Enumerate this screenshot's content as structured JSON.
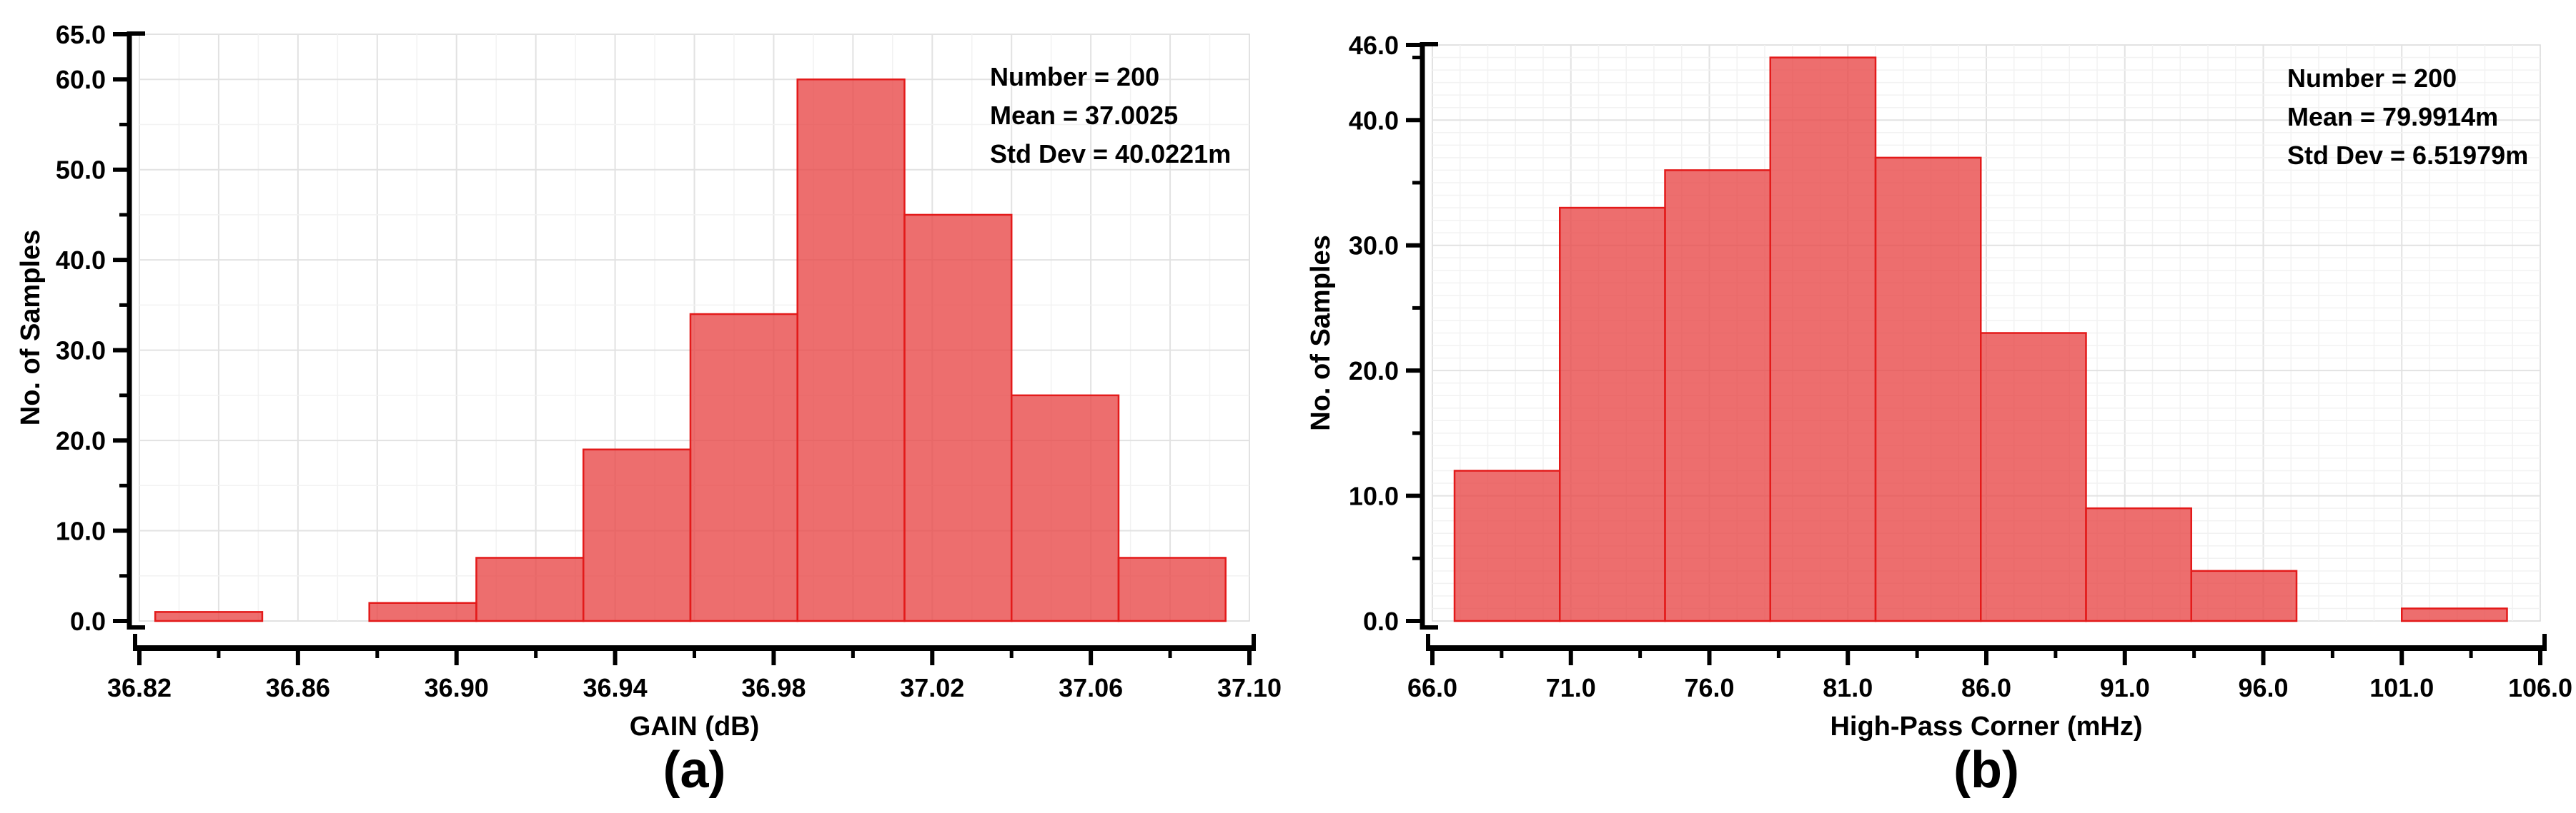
{
  "figure": {
    "background": "#ffffff",
    "bar_fill": "#e84545",
    "bar_fill_opacity": 0.78,
    "bar_stroke": "#e31a1a",
    "axis_color": "#000000",
    "grid_major_color": "#e2e2e2",
    "grid_minor_color": "#f2f2f2",
    "plot_border_color": "#d8d8d8",
    "text_color": "#000000"
  },
  "chart_data": [
    {
      "type": "bar",
      "panel_label": "(a)",
      "xlabel": "GAIN (dB)",
      "ylabel": "No. of Samples",
      "xlim": [
        36.82,
        37.1
      ],
      "ylim": [
        0,
        65
      ],
      "grid": true,
      "legend_position": "none",
      "x_major_ticks": [
        {
          "v": 36.82,
          "label": "36.82"
        },
        {
          "v": 36.86,
          "label": "36.86"
        },
        {
          "v": 36.9,
          "label": "36.90"
        },
        {
          "v": 36.94,
          "label": "36.94"
        },
        {
          "v": 36.98,
          "label": "36.98"
        },
        {
          "v": 37.02,
          "label": "37.02"
        },
        {
          "v": 37.06,
          "label": "37.06"
        },
        {
          "v": 37.1,
          "label": "37.10"
        }
      ],
      "x_minor_ticks": [
        36.84,
        36.88,
        36.92,
        36.96,
        37.0,
        37.04,
        37.08
      ],
      "y_major_ticks": [
        {
          "v": 0,
          "label": "0.0"
        },
        {
          "v": 10,
          "label": "10.0"
        },
        {
          "v": 20,
          "label": "20.0"
        },
        {
          "v": 30,
          "label": "30.0"
        },
        {
          "v": 40,
          "label": "40.0"
        },
        {
          "v": 50,
          "label": "50.0"
        },
        {
          "v": 60,
          "label": "60.0"
        },
        {
          "v": 65,
          "label": "65.0"
        }
      ],
      "y_minor_ticks": [
        5,
        15,
        25,
        35,
        45,
        55
      ],
      "grid_x_step": 0.01,
      "grid_x_major_step": 0.02,
      "grid_y_step": 5,
      "grid_y_major_step": 10,
      "bins": {
        "start": 36.824,
        "width": 0.027,
        "counts": [
          1,
          0,
          2,
          7,
          19,
          34,
          60,
          45,
          25,
          7
        ]
      },
      "annotation": {
        "lines": [
          "Number = 200",
          "Mean = 37.0025",
          "Std Dev = 40.0221m"
        ]
      },
      "stats": {
        "number": 200,
        "mean": "37.0025",
        "std_dev": "40.0221m"
      }
    },
    {
      "type": "bar",
      "panel_label": "(b)",
      "xlabel": "High-Pass Corner (mHz)",
      "ylabel": "No. of Samples",
      "xlim": [
        66.0,
        106.0
      ],
      "ylim": [
        0,
        46
      ],
      "grid": true,
      "legend_position": "none",
      "x_major_ticks": [
        {
          "v": 66.0,
          "label": "66.0"
        },
        {
          "v": 71.0,
          "label": "71.0"
        },
        {
          "v": 76.0,
          "label": "76.0"
        },
        {
          "v": 81.0,
          "label": "81.0"
        },
        {
          "v": 86.0,
          "label": "86.0"
        },
        {
          "v": 91.0,
          "label": "91.0"
        },
        {
          "v": 96.0,
          "label": "96.0"
        },
        {
          "v": 101.0,
          "label": "101.0"
        },
        {
          "v": 106.0,
          "label": "106.0"
        }
      ],
      "x_minor_ticks": [
        68.5,
        73.5,
        78.5,
        83.5,
        88.5,
        93.5,
        98.5,
        103.5
      ],
      "y_major_ticks": [
        {
          "v": 0,
          "label": "0.0"
        },
        {
          "v": 10,
          "label": "10.0"
        },
        {
          "v": 20,
          "label": "20.0"
        },
        {
          "v": 30,
          "label": "30.0"
        },
        {
          "v": 40,
          "label": "40.0"
        },
        {
          "v": 46,
          "label": "46.0"
        }
      ],
      "y_minor_ticks": [
        5,
        15,
        25,
        35,
        45
      ],
      "grid_x_step": 1.0,
      "grid_x_major_step": 5.0,
      "grid_y_step": 1,
      "grid_y_major_step": 10,
      "bins": {
        "start": 66.8,
        "width": 3.8,
        "counts": [
          12,
          33,
          36,
          45,
          37,
          23,
          9,
          4,
          0,
          1
        ]
      },
      "annotation": {
        "lines": [
          "Number = 200",
          "Mean = 79.9914m",
          "Std Dev = 6.51979m"
        ]
      },
      "stats": {
        "number": 200,
        "mean": "79.9914m",
        "std_dev": "6.51979m"
      }
    }
  ]
}
